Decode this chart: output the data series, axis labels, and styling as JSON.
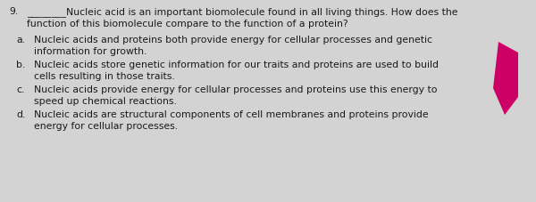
{
  "background_color": "#d3d3d3",
  "text_color": "#1a1a1a",
  "font_size": 7.8,
  "question_number": "9.",
  "blank": "________",
  "q_line1": "Nucleic acid is an important biomolecule found in all living things. How does the",
  "q_line2": "function of this biomolecule compare to the function of a protein?",
  "choices": [
    {
      "label": "a.",
      "line1": "Nucleic acids and proteins both provide energy for cellular processes and genetic",
      "line2": "information for growth."
    },
    {
      "label": "b.",
      "line1": "Nucleic acids store genetic information for our traits and proteins are used to build",
      "line2": "cells resulting in those traits."
    },
    {
      "label": "c.",
      "line1": "Nucleic acids provide energy for cellular processes and proteins use this energy to",
      "line2": "speed up chemical reactions."
    },
    {
      "label": "d.",
      "line1": "Nucleic acids are structural components of cell membranes and proteins provide",
      "line2": "energy for cellular processes."
    }
  ],
  "pencil_color": "#cc0066",
  "fig_width": 6.0,
  "fig_height": 2.28,
  "dpi": 100
}
